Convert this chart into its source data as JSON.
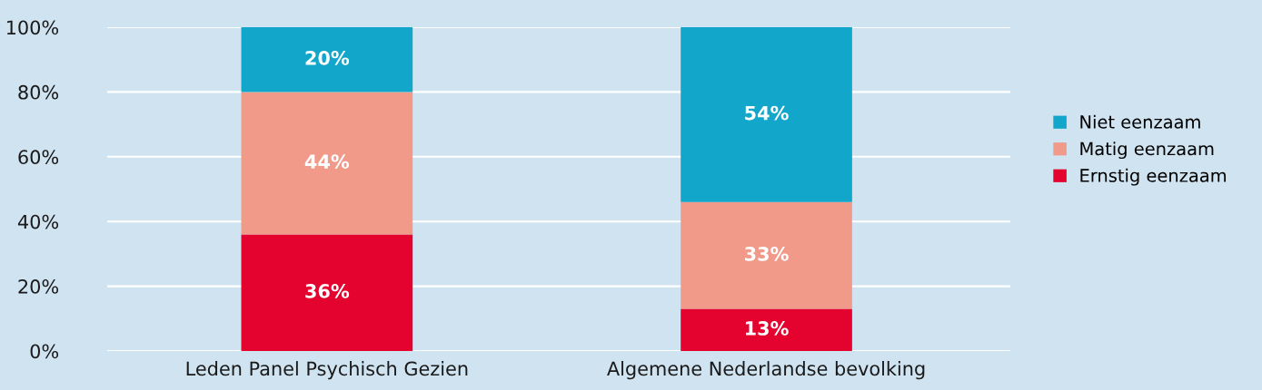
{
  "chart_data": {
    "type": "bar",
    "stacked": true,
    "categories": [
      "Leden Panel Psychisch Gezien",
      "Algemene Nederlandse bevolking"
    ],
    "series": [
      {
        "name": "Ernstig eenzaam",
        "color": "#e4032e",
        "values": [
          36,
          13
        ],
        "value_labels": [
          "36%",
          "13%"
        ]
      },
      {
        "name": "Matig eenzaam",
        "color": "#f29a8a",
        "values": [
          44,
          33
        ],
        "value_labels": [
          "44%",
          "33%"
        ]
      },
      {
        "name": "Niet eenzaam",
        "color": "#12a6cb",
        "values": [
          20,
          54
        ],
        "value_labels": [
          "20%",
          "54%"
        ]
      }
    ],
    "ylim": [
      0,
      100
    ],
    "yticks": [
      {
        "value": 0,
        "label": "0%"
      },
      {
        "value": 20,
        "label": "20%"
      },
      {
        "value": 40,
        "label": "40%"
      },
      {
        "value": 60,
        "label": "60%"
      },
      {
        "value": 80,
        "label": "80%"
      },
      {
        "value": 100,
        "label": "100%"
      }
    ],
    "grid": "y",
    "legend": "right"
  }
}
